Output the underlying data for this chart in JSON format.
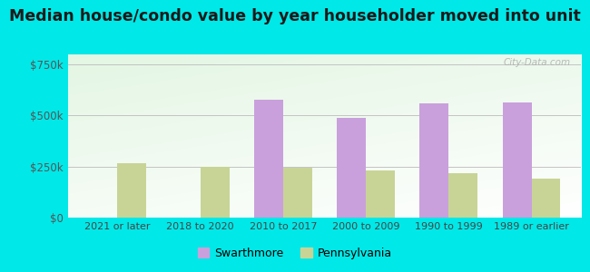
{
  "categories": [
    "2021 or later",
    "2018 to 2020",
    "2010 to 2017",
    "2000 to 2009",
    "1990 to 1999",
    "1989 or earlier"
  ],
  "swarthmore": [
    0,
    0,
    580000,
    490000,
    560000,
    565000
  ],
  "pennsylvania": [
    268000,
    250000,
    243000,
    232000,
    220000,
    193000
  ],
  "swarthmore_color": "#c9a0dc",
  "pennsylvania_color": "#c8d496",
  "title": "Median house/condo value by year householder moved into unit",
  "title_fontsize": 12.5,
  "yticks": [
    0,
    250000,
    500000,
    750000
  ],
  "ytick_labels": [
    "$0",
    "$250k",
    "$500k",
    "$750k"
  ],
  "ylim": [
    0,
    800000
  ],
  "outer_background": "#00e8e8",
  "legend_swarthmore": "Swarthmore",
  "legend_pennsylvania": "Pennsylvania",
  "bar_width": 0.35,
  "grid_color": "#bbbbbb"
}
